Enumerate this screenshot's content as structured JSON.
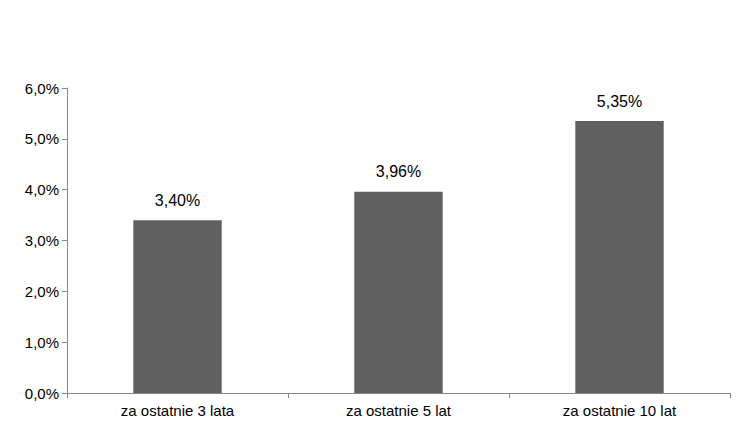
{
  "chart_data": {
    "type": "bar",
    "categories": [
      "za ostatnie 3 lata",
      "za ostatnie 5 lat",
      "za ostatnie 10 lat"
    ],
    "values": [
      3.4,
      3.96,
      5.35
    ],
    "value_labels": [
      "3,40%",
      "3,96%",
      "5,35%"
    ],
    "color": "#606060",
    "ylim": [
      0,
      6
    ],
    "yticks": [
      {
        "value": 0,
        "label": "0,0%"
      },
      {
        "value": 1,
        "label": "1,0%"
      },
      {
        "value": 2,
        "label": "2,0%"
      },
      {
        "value": 3,
        "label": "3,0%"
      },
      {
        "value": 4,
        "label": "4,0%"
      },
      {
        "value": 5,
        "label": "5,0%"
      },
      {
        "value": 6,
        "label": "6,0%"
      }
    ],
    "grid": false,
    "data_labels": true
  }
}
